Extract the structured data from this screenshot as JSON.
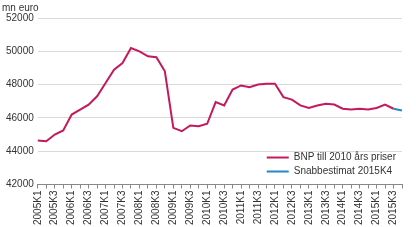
{
  "chart_data": {
    "type": "line",
    "y_label": "mn euro",
    "categories": [
      "2005K1",
      null,
      "2005K3",
      null,
      "2006K1",
      null,
      "2006K3",
      null,
      "2007K1",
      null,
      "2007K3",
      null,
      "2008K1",
      null,
      "2008K3",
      null,
      "2009K1",
      null,
      "2009K3",
      null,
      "2010K1",
      null,
      "2010K3",
      null,
      "2011K1",
      null,
      "2011K3",
      null,
      "2012K1",
      null,
      "2012K3",
      null,
      "2013K1",
      null,
      "2013K3",
      null,
      "2014K1",
      null,
      "2014K3",
      null,
      "2015K1",
      null,
      "2015K3",
      null
    ],
    "series": [
      {
        "name": "BNP till 2010 års priser",
        "color": "#c4195c",
        "values": [
          44650,
          44600,
          45000,
          45250,
          46200,
          46500,
          46800,
          47300,
          48100,
          48900,
          49300,
          50200,
          50000,
          49700,
          49650,
          48800,
          45400,
          45200,
          45550,
          45500,
          45650,
          46950,
          46750,
          47700,
          47950,
          47850,
          48000,
          48050,
          48050,
          47250,
          47100,
          46750,
          46600,
          46750,
          46850,
          46800,
          46550,
          46500,
          46550,
          46500,
          46600,
          46800,
          46550,
          null
        ]
      },
      {
        "name": "Snabbestimat 2015K4",
        "color": "#1f8ac6",
        "values": [
          null,
          null,
          null,
          null,
          null,
          null,
          null,
          null,
          null,
          null,
          null,
          null,
          null,
          null,
          null,
          null,
          null,
          null,
          null,
          null,
          null,
          null,
          null,
          null,
          null,
          null,
          null,
          null,
          null,
          null,
          null,
          null,
          null,
          null,
          null,
          null,
          null,
          null,
          null,
          null,
          null,
          null,
          46550,
          46450
        ]
      }
    ],
    "ylim": [
      42000,
      52000
    ],
    "yticks": [
      42000,
      44000,
      46000,
      48000,
      50000,
      52000
    ],
    "grid": true,
    "legend": "lower right"
  }
}
